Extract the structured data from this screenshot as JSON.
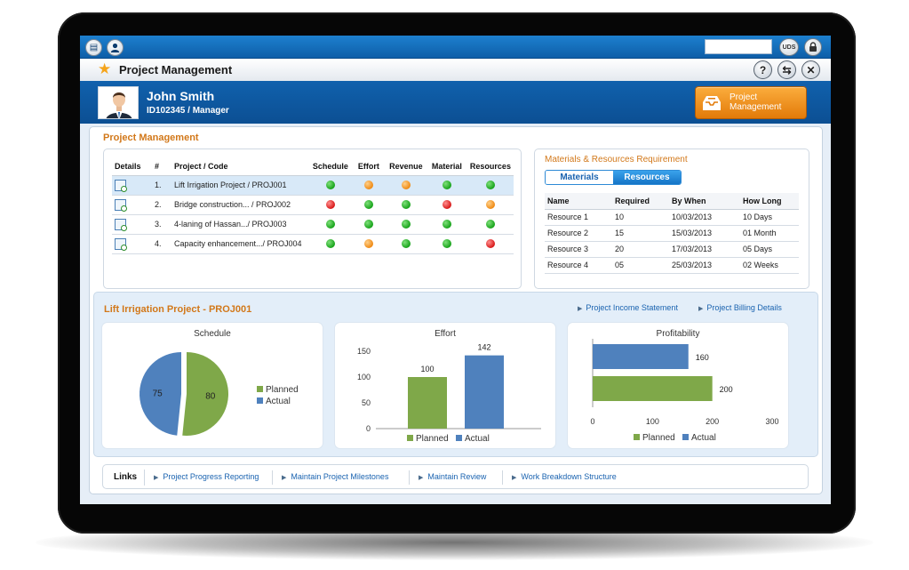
{
  "header": {
    "app_title": "Project Management",
    "uds_label": "UDS",
    "help_icon": "?",
    "refresh_icon": "⇆",
    "close_icon": "✕"
  },
  "user": {
    "name": "John Smith",
    "id_role": "ID102345 / Manager"
  },
  "pm_button": {
    "line1": "Project",
    "line2": "Management"
  },
  "section_title": "Project Management",
  "projects": {
    "columns": [
      "Details",
      "#",
      "Project / Code",
      "Schedule",
      "Effort",
      "Revenue",
      "Material",
      "Resources"
    ],
    "rows": [
      {
        "num": "1.",
        "name": "Lift Irrigation Project / PROJ001",
        "schedule": "green",
        "effort": "orange",
        "revenue": "orange",
        "material": "green",
        "resources": "green"
      },
      {
        "num": "2.",
        "name": "Bridge construction... / PROJ002",
        "schedule": "red",
        "effort": "green",
        "revenue": "green",
        "material": "red",
        "resources": "orange"
      },
      {
        "num": "3.",
        "name": "4-laning of Hassan.../ PROJ003",
        "schedule": "green",
        "effort": "green",
        "revenue": "green",
        "material": "green",
        "resources": "green"
      },
      {
        "num": "4.",
        "name": "Capacity enhancement.../ PROJ004",
        "schedule": "green",
        "effort": "orange",
        "revenue": "green",
        "material": "green",
        "resources": "red"
      }
    ]
  },
  "materials": {
    "title": "Materials & Resources Requirement",
    "tabs": [
      "Materials",
      "Resources"
    ],
    "active_tab": "Resources",
    "columns": [
      "Name",
      "Required",
      "By When",
      "How Long"
    ],
    "rows": [
      {
        "name": "Resource 1",
        "required": "10",
        "by_when": "10/03/2013",
        "how_long": "10 Days"
      },
      {
        "name": "Resource 2",
        "required": "15",
        "by_when": "15/03/2013",
        "how_long": "01 Month"
      },
      {
        "name": "Resource 3",
        "required": "20",
        "by_when": "17/03/2013",
        "how_long": "05 Days"
      },
      {
        "name": "Resource 4",
        "required": "05",
        "by_when": "25/03/2013",
        "how_long": "02 Weeks"
      }
    ]
  },
  "detail": {
    "title": "Lift Irrigation Project - PROJ001",
    "links": [
      "Project Income Statement",
      "Project Billing Details"
    ]
  },
  "colors": {
    "planned": "#7fa849",
    "actual": "#4f81bd",
    "accent": "#d2781a",
    "header_blue": "#0e5ea8"
  },
  "chart_data": [
    {
      "type": "pie",
      "title": "Schedule",
      "labels": [
        "Planned",
        "Actual"
      ],
      "values": [
        80,
        75
      ],
      "legend": "right"
    },
    {
      "type": "bar",
      "title": "Effort",
      "categories": [
        "Planned",
        "Actual"
      ],
      "values": [
        100,
        142
      ],
      "ylim": [
        0,
        150
      ],
      "yticks": [
        0,
        50,
        100,
        150
      ],
      "legend": "bottom"
    },
    {
      "type": "bar",
      "orientation": "horizontal",
      "title": "Profitability",
      "categories": [
        "Actual",
        "Planned"
      ],
      "values": [
        160,
        200
      ],
      "xlim": [
        0,
        300
      ],
      "xticks": [
        0,
        100,
        200,
        300
      ],
      "legend": "bottom"
    }
  ],
  "links_bar": {
    "label": "Links",
    "items": [
      "Project Progress Reporting",
      "Maintain Project Milestones",
      "Maintain Review",
      "Work Breakdown Structure"
    ]
  }
}
